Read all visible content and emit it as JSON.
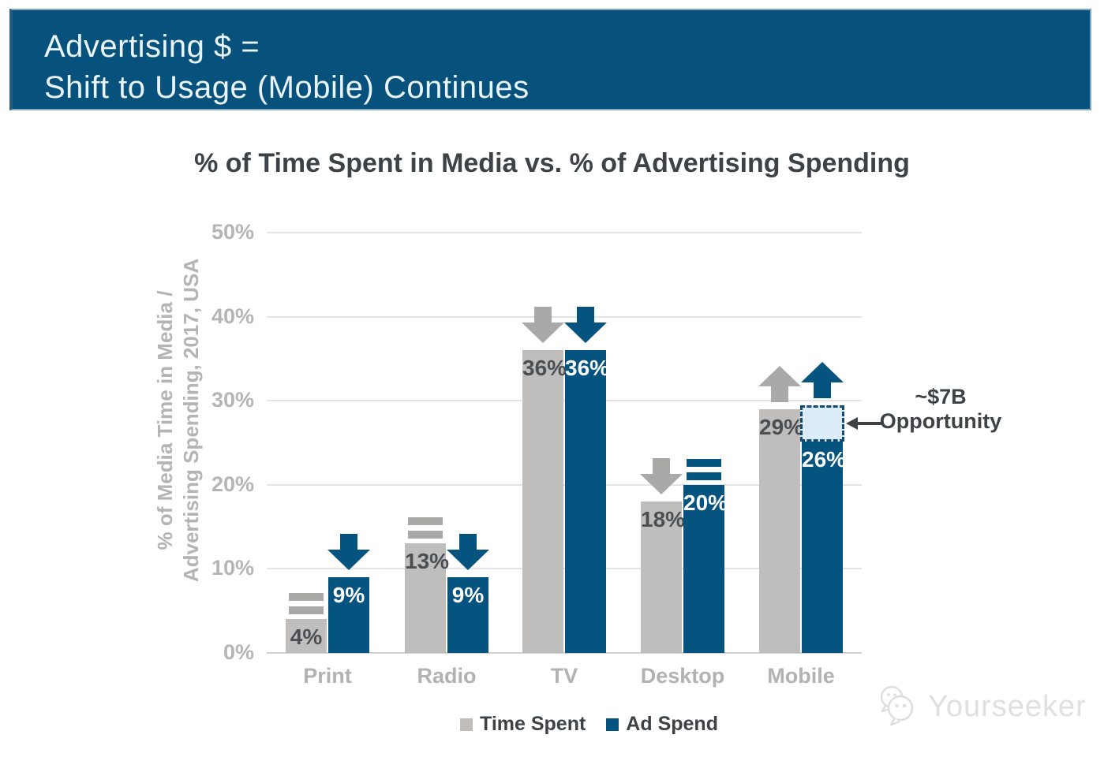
{
  "header": {
    "line1": "Advertising $ =",
    "line2": "Shift to Usage (Mobile) Continues",
    "bg_color": "#07527d"
  },
  "chart_data": {
    "type": "bar",
    "title": "% of Time Spent in Media vs. % of Advertising Spending",
    "ylabel_line1": "% of Media Time in Media /",
    "ylabel_line2": "Advertising Spending, 2017, USA",
    "categories": [
      "Print",
      "Radio",
      "TV",
      "Desktop",
      "Mobile"
    ],
    "series": [
      {
        "name": "Time Spent",
        "color": "#bfbebc",
        "arrow_color": "#a9a9a7",
        "values": [
          4,
          13,
          36,
          18,
          29
        ],
        "labels": [
          "4%",
          "13%",
          "36%",
          "18%",
          "29%"
        ],
        "trend": [
          "flat",
          "flat",
          "down",
          "down",
          "up"
        ]
      },
      {
        "name": "Ad Spend",
        "color": "#05537f",
        "arrow_color": "#05537f",
        "values": [
          9,
          9,
          36,
          20,
          26
        ],
        "labels": [
          "9%",
          "9%",
          "36%",
          "20%",
          "26%"
        ],
        "trend": [
          "down",
          "down",
          "down",
          "flat",
          "up"
        ]
      }
    ],
    "ylim": [
      0,
      50
    ],
    "yticks": [
      "0%",
      "10%",
      "20%",
      "30%",
      "40%",
      "50%"
    ],
    "grid": true,
    "legend_position": "bottom",
    "opportunity_box": {
      "category": "Mobile",
      "series": "Ad Spend",
      "spans_pct": [
        26,
        29.5
      ],
      "fill": "#d9ecf8",
      "border": "#134a6e"
    },
    "annotation": {
      "line1": "~$7B",
      "line2": "Opportunity"
    }
  },
  "legend": {
    "items": [
      {
        "label": "Time Spent",
        "color": "#bfbebc"
      },
      {
        "label": "Ad Spend",
        "color": "#05537f"
      }
    ]
  },
  "watermark": {
    "text": "Yourseeker"
  }
}
